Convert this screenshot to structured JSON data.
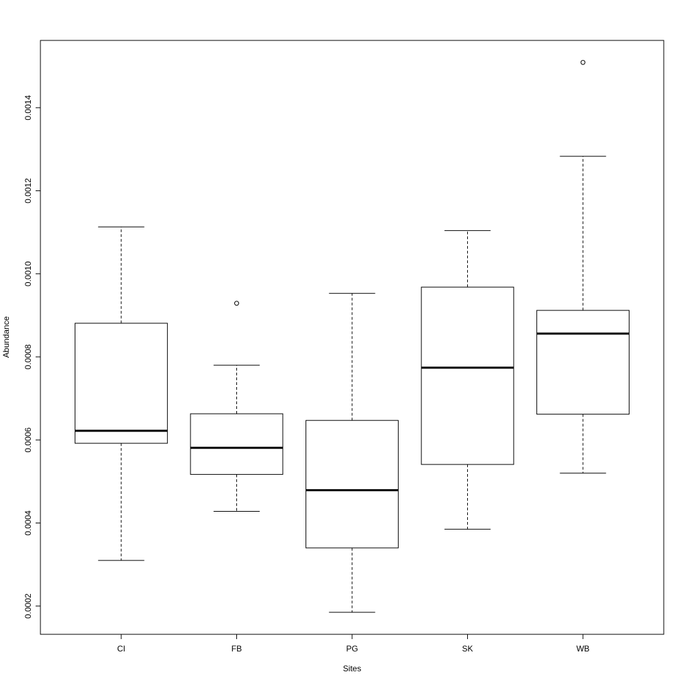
{
  "chart_data": {
    "type": "box",
    "x_label": "Sites",
    "y_label": "Abundance",
    "categories": [
      "CI",
      "FB",
      "PG",
      "SK",
      "WB"
    ],
    "boxes": [
      {
        "whisker_low": 0.00031,
        "q1": 0.000592,
        "median": 0.000622,
        "q3": 0.000881,
        "whisker_high": 0.001113
      },
      {
        "whisker_low": 0.000428,
        "q1": 0.000517,
        "median": 0.000581,
        "q3": 0.000663,
        "whisker_high": 0.00078,
        "outliers": [
          0.000929
        ]
      },
      {
        "whisker_low": 0.000185,
        "q1": 0.00034,
        "median": 0.000479,
        "q3": 0.000647,
        "whisker_high": 0.000953
      },
      {
        "whisker_low": 0.000385,
        "q1": 0.000541,
        "median": 0.000774,
        "q3": 0.000968,
        "whisker_high": 0.001104
      },
      {
        "whisker_low": 0.00052,
        "q1": 0.000662,
        "median": 0.000856,
        "q3": 0.000912,
        "whisker_high": 0.001283,
        "outliers": [
          0.001509
        ]
      }
    ],
    "ylim": [
      0.000132,
      0.001562
    ],
    "yticks": [
      0.0002,
      0.0004,
      0.0006,
      0.0008,
      {
        "value": 0.001,
        "label": "0.0010"
      },
      0.0012,
      0.0014
    ],
    "color": "#ffffff"
  }
}
